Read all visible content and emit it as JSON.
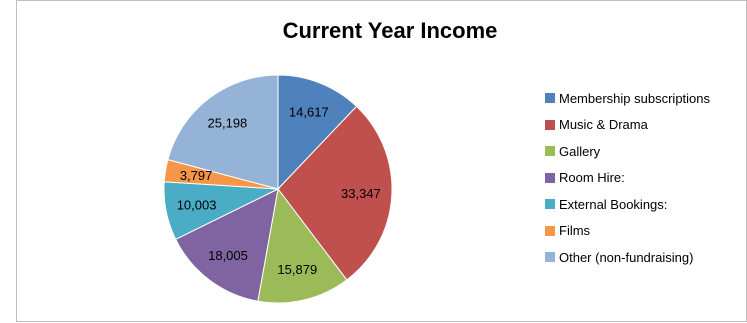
{
  "chart_data": {
    "type": "pie",
    "title": "Current Year Income",
    "categories": [
      "Membership subscriptions",
      "Music & Drama",
      "Gallery",
      "Room Hire:",
      "External Bookings:",
      "Films",
      "Other (non-fundraising)"
    ],
    "values": [
      14617,
      33347,
      15879,
      18005,
      10003,
      3797,
      25198
    ],
    "data_labels": [
      "14,617",
      "33,347",
      "15,879",
      "18,005",
      "10,003",
      "3,797",
      "25,198"
    ],
    "colors": [
      "#4f81bd",
      "#c0504d",
      "#9bbb59",
      "#8064a2",
      "#4bacc6",
      "#f79646",
      "#95b3d7"
    ],
    "start_angle": "12 o'clock",
    "direction": "clockwise",
    "legend_position": "right"
  }
}
